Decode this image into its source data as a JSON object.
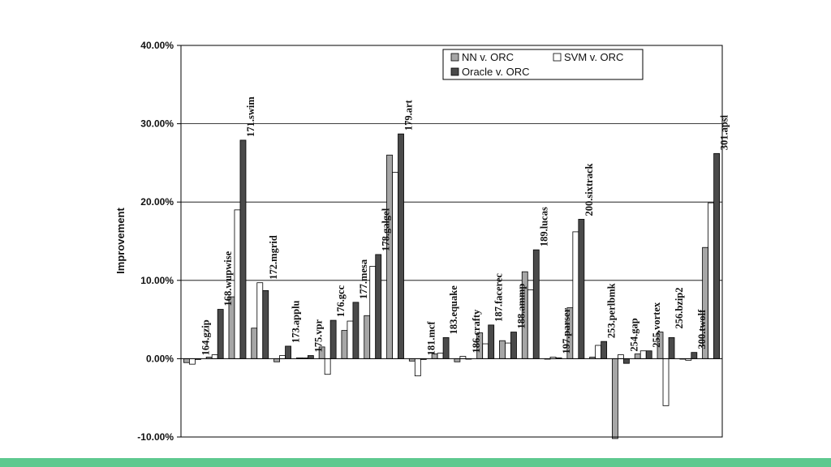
{
  "chart_data": {
    "type": "bar",
    "ylabel": "Improvement",
    "ylim": [
      -0.1,
      0.4
    ],
    "y_ticks": [
      {
        "value": -0.1,
        "label": "-10.00%"
      },
      {
        "value": 0.0,
        "label": "0.00%"
      },
      {
        "value": 0.1,
        "label": "10.00%"
      },
      {
        "value": 0.2,
        "label": "20.00%"
      },
      {
        "value": 0.3,
        "label": "30.00%"
      },
      {
        "value": 0.4,
        "label": "40.00%"
      }
    ],
    "grid": true,
    "legend_position": "top-right",
    "categories": [
      "164.gzip",
      "168.wupwise",
      "171.swim",
      "172.mgrid",
      "173.applu",
      "175.vpr",
      "176.gcc",
      "177.mesa",
      "178.galgel",
      "179.art",
      "181.mcf",
      "183.equake",
      "186.crafty",
      "187.facerec",
      "188.ammp",
      "189.lucas",
      "197.parser",
      "200.sixtrack",
      "253.perlbmk",
      "254.gap",
      "255.vortex",
      "256.bzip2",
      "300.twolf",
      "301.apsi"
    ],
    "series": [
      {
        "name": "NN v. ORC",
        "color": "#a6a6a6",
        "values": [
          -0.005,
          0.002,
          0.079,
          0.039,
          -0.004,
          0.001,
          0.015,
          0.036,
          0.055,
          0.26,
          -0.003,
          0.006,
          -0.004,
          0.033,
          0.023,
          0.111,
          0.0,
          0.065,
          0.002,
          -0.102,
          0.006,
          0.034,
          0.0,
          0.142
        ]
      },
      {
        "name": "SVM v. ORC",
        "color": "#ffffff",
        "values": [
          -0.007,
          0.005,
          0.19,
          0.097,
          0.004,
          0.001,
          -0.02,
          0.048,
          0.118,
          0.238,
          -0.022,
          0.007,
          0.003,
          0.019,
          0.02,
          0.088,
          0.002,
          0.162,
          0.017,
          0.005,
          0.01,
          -0.06,
          -0.002,
          0.199
        ]
      },
      {
        "name": "Oracle v. ORC",
        "color": "#4a4a4a",
        "values": [
          -0.001,
          0.063,
          0.279,
          0.087,
          0.016,
          0.004,
          0.049,
          0.072,
          0.133,
          0.287,
          -0.001,
          0.027,
          0.0,
          0.043,
          0.034,
          0.139,
          0.001,
          0.178,
          0.022,
          -0.006,
          0.01,
          0.027,
          0.008,
          0.262
        ]
      }
    ],
    "legend": [
      {
        "name": "NN v. ORC",
        "color": "#a6a6a6"
      },
      {
        "name": "SVM v. ORC",
        "color": "#ffffff"
      },
      {
        "name": "Oracle v. ORC",
        "color": "#4a4a4a"
      }
    ]
  },
  "colors": {
    "footer_bar": "#5ec98f",
    "grid": "#000000"
  }
}
